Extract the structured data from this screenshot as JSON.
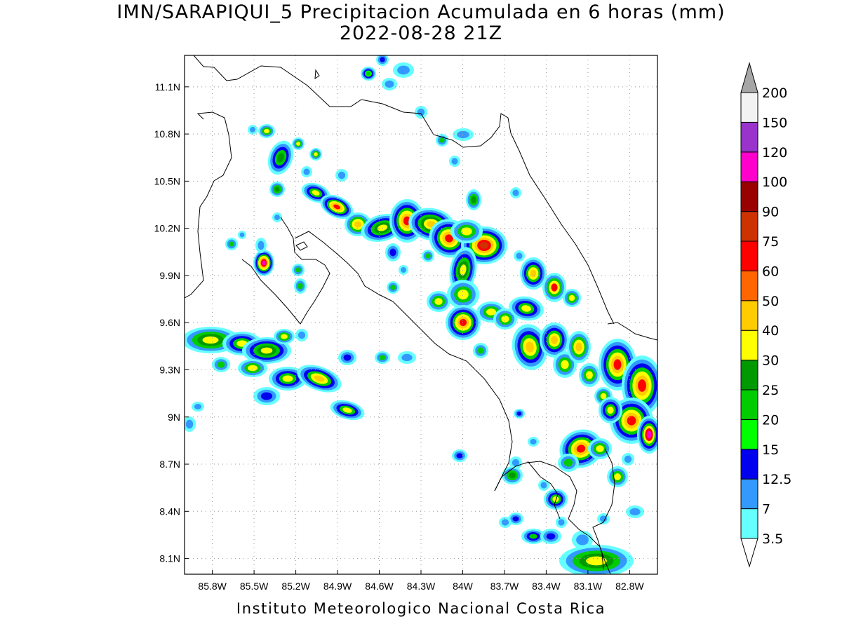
{
  "title_line1": "IMN/SARAPIQUI_5 Precipitacion Acumulada en 6 horas (mm)",
  "title_line2": "2022-08-28 21Z",
  "footer": "Instituto Meteorologico Nacional Costa Rica",
  "map": {
    "lon_range": [
      -86.0,
      -82.6
    ],
    "lat_range": [
      8.0,
      11.3
    ],
    "lon_ticks": [
      "85.8W",
      "85.5W",
      "85.2W",
      "84.9W",
      "84.6W",
      "84.3W",
      "84W",
      "83.7W",
      "83.4W",
      "83.1W",
      "82.8W"
    ],
    "lat_ticks": [
      "11.1N",
      "10.8N",
      "10.5N",
      "10.2N",
      "9.9N",
      "9.6N",
      "9.3N",
      "9N",
      "8.7N",
      "8.4N",
      "8.1N"
    ],
    "grid": true
  },
  "colorbar": {
    "labels": [
      "3.5",
      "7",
      "12.5",
      "15",
      "20",
      "25",
      "30",
      "40",
      "50",
      "60",
      "75",
      "90",
      "100",
      "120",
      "150",
      "200"
    ],
    "colors": [
      "#66ffff",
      "#3399ff",
      "#0000ee",
      "#00ff00",
      "#00cc00",
      "#009900",
      "#ffff00",
      "#ffcc00",
      "#ff6600",
      "#ff0000",
      "#cc3300",
      "#990000",
      "#ff00cc",
      "#9933cc",
      "#f2f2f2",
      "#a6a6a6"
    ]
  }
}
